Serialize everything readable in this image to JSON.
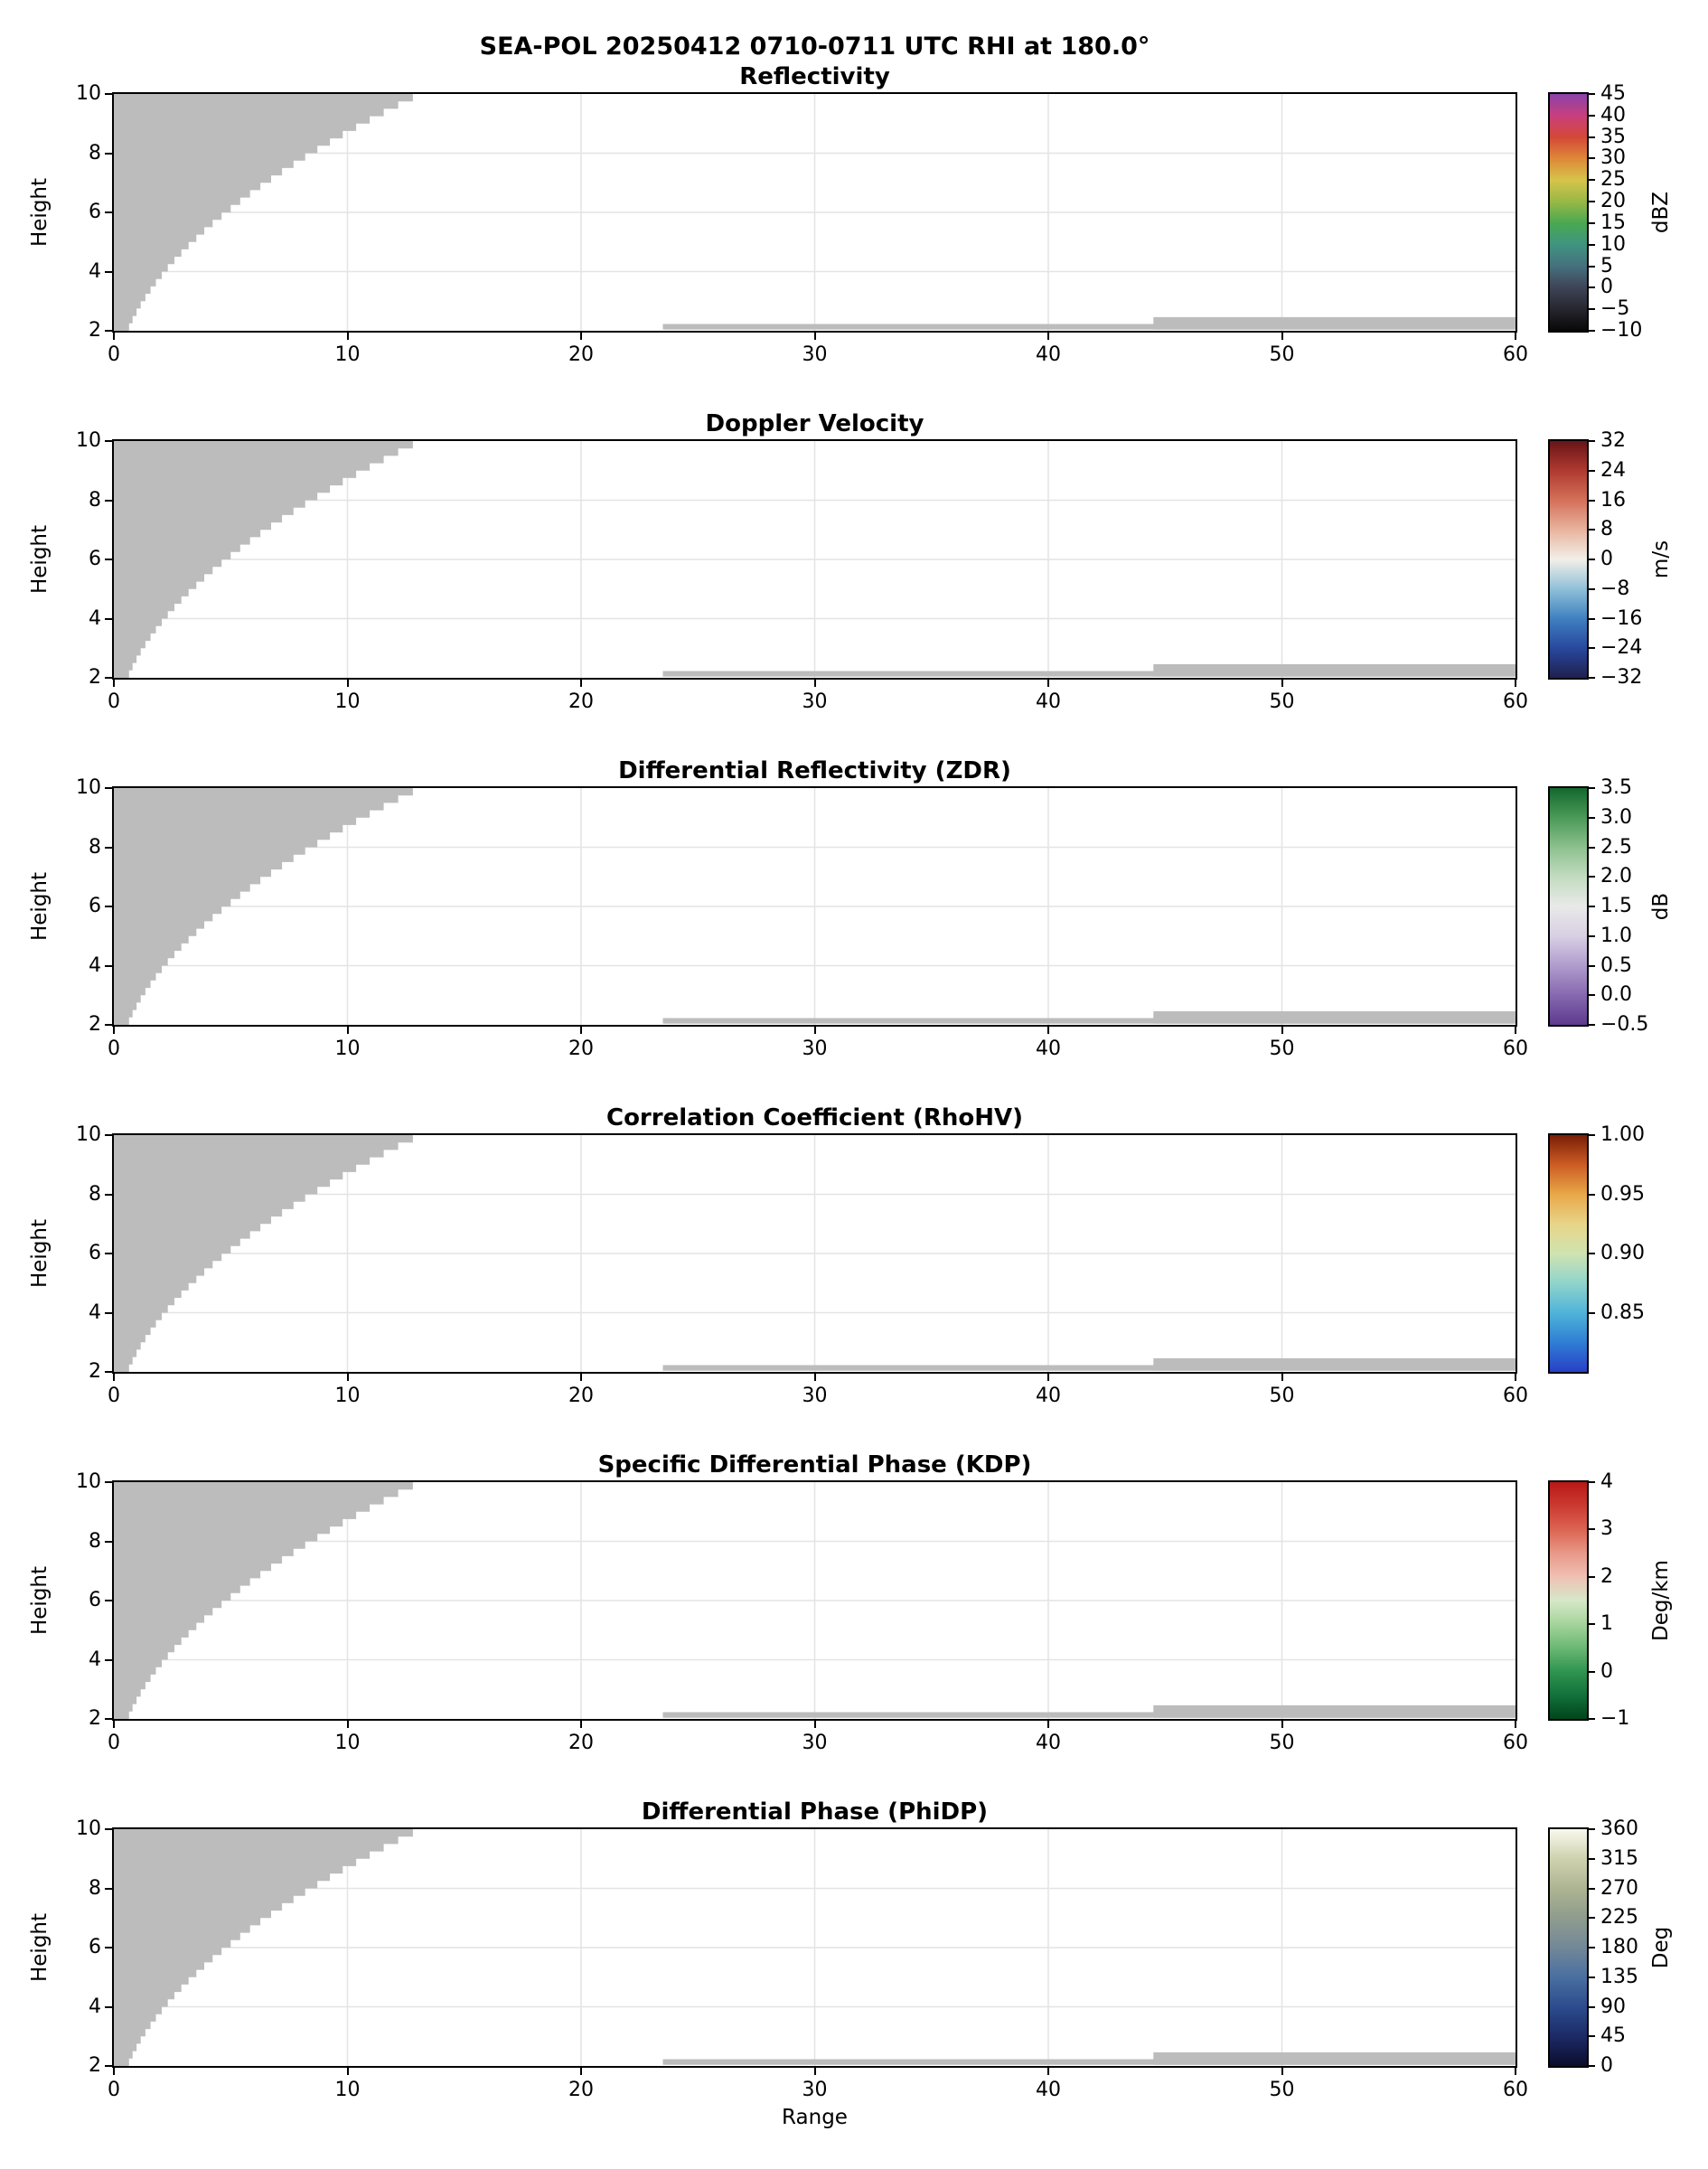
{
  "figure": {
    "main_title": "SEA-POL 20250412 0710-0711 UTC RHI at 180.0°",
    "x_axis_label": "Range",
    "y_axis_label": "Height"
  },
  "chart_data": {
    "type": "heatmap",
    "title": "SEA-POL 20250412 0710-0711 UTC RHI at 180.0°",
    "xlabel": "Range",
    "ylabel": "Height",
    "x_range": [
      0,
      60
    ],
    "y_range": [
      2,
      10
    ],
    "x_ticks": [
      0,
      10,
      20,
      30,
      40,
      50,
      60
    ],
    "x_tick_labels": [
      "0",
      "10",
      "20",
      "30",
      "40",
      "50",
      "60"
    ],
    "y_ticks": [
      2,
      4,
      6,
      8,
      10
    ],
    "y_tick_labels": [
      "2",
      "4",
      "6",
      "8",
      "10"
    ],
    "grid": true,
    "mask_color": "#bcbcbc",
    "grid_color": "#e4e4e4",
    "masked_wedge": {
      "y": [
        2.0,
        2.25,
        2.5,
        2.75,
        3.0,
        3.25,
        3.5,
        3.75,
        4.0,
        4.25,
        4.5,
        4.75,
        5.0,
        5.25,
        5.5,
        5.75,
        6.0,
        6.25,
        6.5,
        6.75,
        7.0,
        7.25,
        7.5,
        7.75,
        8.0,
        8.25,
        8.5,
        8.75,
        9.0,
        9.25,
        9.5,
        9.75,
        10.0
      ],
      "x": [
        0.51,
        0.65,
        0.8,
        0.97,
        1.15,
        1.35,
        1.57,
        1.8,
        2.05,
        2.31,
        2.59,
        2.89,
        3.2,
        3.53,
        3.87,
        4.23,
        4.61,
        5.0,
        5.41,
        5.83,
        6.27,
        6.73,
        7.2,
        7.69,
        8.19,
        8.71,
        9.25,
        9.8,
        10.37,
        10.95,
        11.55,
        12.17,
        12.8
      ]
    },
    "masked_strips": [
      {
        "x_start": 23.5,
        "x_end": 60,
        "y_bottom": 2.04,
        "y_top": 2.23
      },
      {
        "x_start": 44.5,
        "x_end": 60,
        "y_bottom": 2.04,
        "y_top": 2.46
      }
    ],
    "panels": [
      {
        "title": "Reflectivity",
        "units": "dBZ",
        "vmin": -10,
        "vmax": 45,
        "colorbar_ticks": [
          45,
          40,
          35,
          30,
          25,
          20,
          15,
          10,
          5,
          0,
          -5,
          -10
        ],
        "colorbar_tick_labels": [
          "45",
          "40",
          "35",
          "30",
          "25",
          "20",
          "15",
          "10",
          "5",
          "0",
          "−5",
          "−10"
        ],
        "colormap": [
          "#080808",
          "#26262e",
          "#3e4456",
          "#45707e",
          "#3f9480",
          "#4aa851",
          "#98b845",
          "#d6c44a",
          "#de8838",
          "#d44836",
          "#c83f7e",
          "#8a42aa"
        ]
      },
      {
        "title": "Doppler Velocity",
        "units": "m/s",
        "vmin": -32,
        "vmax": 32,
        "colorbar_ticks": [
          32,
          24,
          16,
          8,
          0,
          -8,
          -16,
          -24,
          -32
        ],
        "colorbar_tick_labels": [
          "32",
          "24",
          "16",
          "8",
          "0",
          "−8",
          "−16",
          "−24",
          "−32"
        ],
        "colormap": [
          "#20204e",
          "#28489e",
          "#3f80c0",
          "#8fc0d8",
          "#f2efe8",
          "#e8b49e",
          "#d4705a",
          "#b03a30",
          "#681418"
        ]
      },
      {
        "title": "Differential Reflectivity (ZDR)",
        "units": "dB",
        "vmin": -0.5,
        "vmax": 3.5,
        "colorbar_ticks": [
          3.5,
          3.0,
          2.5,
          2.0,
          1.5,
          1.0,
          0.5,
          0.0,
          -0.5
        ],
        "colorbar_tick_labels": [
          "3.5",
          "3.0",
          "2.5",
          "2.0",
          "1.5",
          "1.0",
          "0.5",
          "0.0",
          "−0.5"
        ],
        "colormap": [
          "#5e3a8e",
          "#8668b0",
          "#b09cce",
          "#d8cfe4",
          "#e9e9e9",
          "#c2dcc0",
          "#8cc08e",
          "#4a9a58",
          "#14682e"
        ]
      },
      {
        "title": "Correlation Coefficient (RhoHV)",
        "units": "",
        "vmin": 0.8,
        "vmax": 1.0,
        "colorbar_ticks": [
          1.0,
          0.95,
          0.9,
          0.85
        ],
        "colorbar_tick_labels": [
          "1.00",
          "0.95",
          "0.90",
          "0.85"
        ],
        "colormap": [
          "#2840c8",
          "#2f7ed4",
          "#4fb4d8",
          "#90d4cc",
          "#cfe4b0",
          "#e8d488",
          "#e8a848",
          "#cc5c24",
          "#7a1e06"
        ]
      },
      {
        "title": "Specific Differential Phase (KDP)",
        "units": "Deg/km",
        "vmin": -1,
        "vmax": 4,
        "colorbar_ticks": [
          4,
          3,
          2,
          1,
          0,
          -1
        ],
        "colorbar_tick_labels": [
          "4",
          "3",
          "2",
          "1",
          "0",
          "−1"
        ],
        "colormap": [
          "#00451c",
          "#13713a",
          "#2f9450",
          "#6ab873",
          "#a4d49a",
          "#d6e8c8",
          "#f0c0b4",
          "#e89888",
          "#dc6452",
          "#cc3a30",
          "#b81818"
        ]
      },
      {
        "title": "Differential Phase (PhiDP)",
        "units": "Deg",
        "vmin": 0,
        "vmax": 360,
        "colorbar_ticks": [
          360,
          315,
          270,
          225,
          180,
          135,
          90,
          45,
          0
        ],
        "colorbar_tick_labels": [
          "360",
          "315",
          "270",
          "225",
          "180",
          "135",
          "90",
          "45",
          "0"
        ],
        "colormap": [
          "#0c0c2c",
          "#1c2a66",
          "#2c4c8e",
          "#4a6fa0",
          "#728898",
          "#8f9c8e",
          "#adb491",
          "#cfd2ae",
          "#f8f8ee"
        ]
      }
    ]
  }
}
